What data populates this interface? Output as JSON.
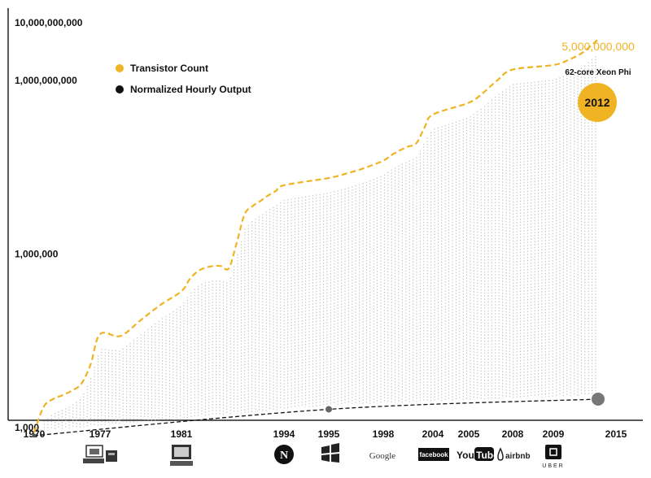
{
  "chart_data": {
    "type": "line",
    "title": "",
    "xlabel": "",
    "ylabel": "",
    "y_scale": "log",
    "y_ticks": [
      {
        "value": 1000,
        "label": "1,000"
      },
      {
        "value": 1000000,
        "label": "1,000,000"
      },
      {
        "value": 1000000000,
        "label": "1,000,000,000"
      },
      {
        "value": 10000000000,
        "label": "10,000,000,000"
      }
    ],
    "x_ticks": [
      "1970",
      "1977",
      "1981",
      "1994",
      "1995",
      "1998",
      "2004",
      "2005",
      "2008",
      "2009",
      "2015"
    ],
    "legend": {
      "placement": "top-left"
    },
    "series": [
      {
        "name": "Transistor Count",
        "color": "#f0b323",
        "style": "dashed",
        "points": [
          [
            "1970",
            800
          ],
          [
            "1971",
            2200
          ],
          [
            "1972",
            3000
          ],
          [
            "1973",
            3500
          ],
          [
            "1974",
            4200
          ],
          [
            "1975",
            5500
          ],
          [
            "1976",
            12000
          ],
          [
            "1977",
            40000
          ],
          [
            "1978",
            37000
          ],
          [
            "1979",
            70000
          ],
          [
            "1980",
            130000
          ],
          [
            "1981",
            220000
          ],
          [
            "1982",
            350000
          ],
          [
            "1983",
            480000
          ],
          [
            "1984",
            560000
          ],
          [
            "1985",
            600000
          ],
          [
            "1986",
            600000
          ],
          [
            "1987",
            550000
          ],
          [
            "1988",
            1500000
          ],
          [
            "1989",
            4700000
          ],
          [
            "1990",
            6500000
          ],
          [
            "1991",
            8000000
          ],
          [
            "1992",
            10000000
          ],
          [
            "1993",
            12000000
          ],
          [
            "1994",
            15000000
          ],
          [
            "1995",
            20000000
          ],
          [
            "1996",
            24000000
          ],
          [
            "1997",
            30000000
          ],
          [
            "1998",
            40000000
          ],
          [
            "1999",
            50000000
          ],
          [
            "2000",
            60000000
          ],
          [
            "2001",
            70000000
          ],
          [
            "2002",
            80000000
          ],
          [
            "2003",
            150000000
          ],
          [
            "2004",
            250000000
          ],
          [
            "2005",
            400000000
          ],
          [
            "2006",
            600000000
          ],
          [
            "2007",
            1000000000
          ],
          [
            "2008",
            1500000000
          ],
          [
            "2009",
            1800000000
          ],
          [
            "2010",
            2200000000
          ],
          [
            "2011",
            3000000000
          ],
          [
            "2012",
            5000000000
          ]
        ]
      },
      {
        "name": "Normalized Hourly Output",
        "color": "#111111",
        "style": "dashed",
        "points": [
          [
            "1970",
            700
          ],
          [
            "1995",
            2000
          ],
          [
            "2012",
            3000
          ]
        ]
      }
    ],
    "annotations": [
      {
        "x": "2012",
        "series": "Transistor Count",
        "bubble_label": "2012",
        "value_label": "5,000,000,000",
        "caption": "62-core Xeon Phi"
      }
    ]
  },
  "logos": [
    {
      "year": "1977",
      "icon": "early-computer-icon"
    },
    {
      "year": "1981",
      "icon": "pc-icon"
    },
    {
      "year": "1994",
      "icon": "netscape-icon"
    },
    {
      "year": "1995",
      "icon": "windows-icon"
    },
    {
      "year": "1998",
      "icon": "google-logo",
      "text": "Google"
    },
    {
      "year": "2004",
      "icon": "facebook-logo",
      "text": "facebook"
    },
    {
      "year": "2005",
      "icon": "youtube-logo",
      "text": "You",
      "text2": "Tube"
    },
    {
      "year": "2008",
      "icon": "airbnb-logo",
      "text": "airbnb"
    },
    {
      "year": "2009",
      "icon": "uber-logo",
      "text": "UBER"
    }
  ]
}
